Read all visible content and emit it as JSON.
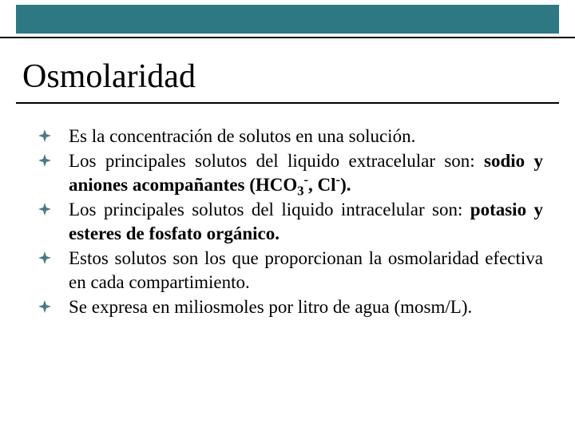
{
  "slide": {
    "title": "Osmolaridad",
    "topbar_color": "#2e7884",
    "topbar_border": "#000000",
    "bullet_color": "#4a7a85",
    "title_fontsize": 42,
    "body_fontsize": 23,
    "background": "#ffffff",
    "text_color": "#000000",
    "bullets": [
      {
        "html": "Es  la  concentración  de  solutos en  una  solución."
      },
      {
        "html": "Los  principales  solutos   del   liquido  extracelular   son: <b>sodio y aniones  acompañantes (HCO<sub>3</sub><sup>-</sup>, Cl<sup>-</sup>).</b>"
      },
      {
        "html": "Los  principales  solutos  del  liquido  intracelular son: <b>potasio y esteres de  fosfato  orgánico.</b>"
      },
      {
        "html": "Estos  solutos  son  los  que  proporcionan  la osmolaridad  efectiva  en cada  compartimiento."
      },
      {
        "html": "Se expresa en miliosmoles por litro de agua (mosm/L)."
      }
    ]
  }
}
